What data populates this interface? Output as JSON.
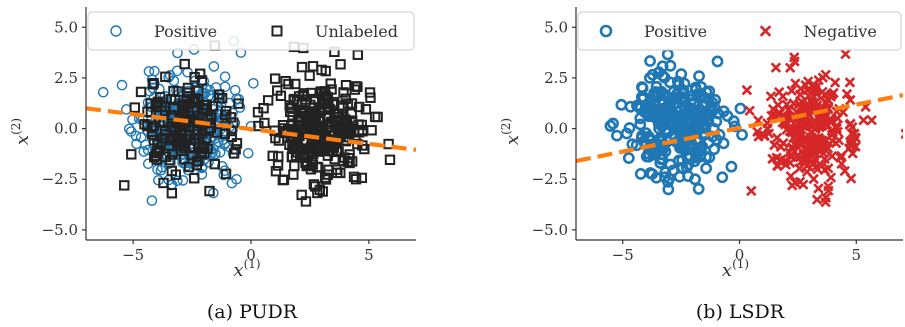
{
  "chart_data": [
    {
      "type": "scatter",
      "caption": "(a) PUDR",
      "xlabel": "x(1)",
      "ylabel": "x(2)",
      "xlim": [
        -7,
        7
      ],
      "ylim": [
        -5.5,
        6
      ],
      "xticks": [
        -5,
        0,
        5
      ],
      "yticks": [
        -5.0,
        -2.5,
        0.0,
        2.5,
        5.0
      ],
      "xtick_labels": [
        "−5",
        "0",
        "5"
      ],
      "ytick_labels": [
        "−5.0",
        "−2.5",
        "0.0",
        "2.5",
        "5.0"
      ],
      "legend_position": "top",
      "series": [
        {
          "name": "Positive",
          "marker": "circle",
          "color": "#1f77b4",
          "cluster": {
            "center": [
              -2.8,
              0.0
            ],
            "spread": [
              1.0,
              1.25
            ],
            "count": 340,
            "seed": 11
          }
        },
        {
          "name": "Unlabeled",
          "marker": "square",
          "color": "#222222",
          "cluster": {
            "center": [
              -2.8,
              0.0
            ],
            "spread": [
              1.0,
              1.25
            ],
            "count": 160,
            "seed": 23
          },
          "cluster2": {
            "center": [
              3.0,
              0.0
            ],
            "spread": [
              1.0,
              1.3
            ],
            "count": 300,
            "seed": 37
          }
        }
      ],
      "boundary": {
        "color": "#ff7f0e",
        "points": [
          [
            -7,
            1.0
          ],
          [
            7,
            -1.05
          ]
        ]
      }
    },
    {
      "type": "scatter",
      "caption": "(b) LSDR",
      "xlabel": "x(1)",
      "ylabel": "x(2)",
      "xlim": [
        -7,
        7
      ],
      "ylim": [
        -5.5,
        6
      ],
      "xticks": [
        -5,
        0,
        5
      ],
      "yticks": [
        -5.0,
        -2.5,
        0.0,
        2.5,
        5.0
      ],
      "xtick_labels": [
        "−5",
        "0",
        "5"
      ],
      "ytick_labels": [
        "−5.0",
        "−2.5",
        "0.0",
        "2.5",
        "5.0"
      ],
      "legend_position": "top",
      "series": [
        {
          "name": "Positive",
          "marker": "circle-thick",
          "color": "#1f77b4",
          "cluster": {
            "center": [
              -2.8,
              0.0
            ],
            "spread": [
              1.0,
              1.25
            ],
            "count": 300,
            "seed": 51
          }
        },
        {
          "name": "Negative",
          "marker": "x",
          "color": "#d62728",
          "cluster": {
            "center": [
              3.0,
              0.0
            ],
            "spread": [
              1.0,
              1.3
            ],
            "count": 280,
            "seed": 67
          }
        }
      ],
      "boundary": {
        "color": "#ff7f0e",
        "points": [
          [
            -7,
            -1.6
          ],
          [
            7,
            1.65
          ]
        ]
      }
    }
  ]
}
